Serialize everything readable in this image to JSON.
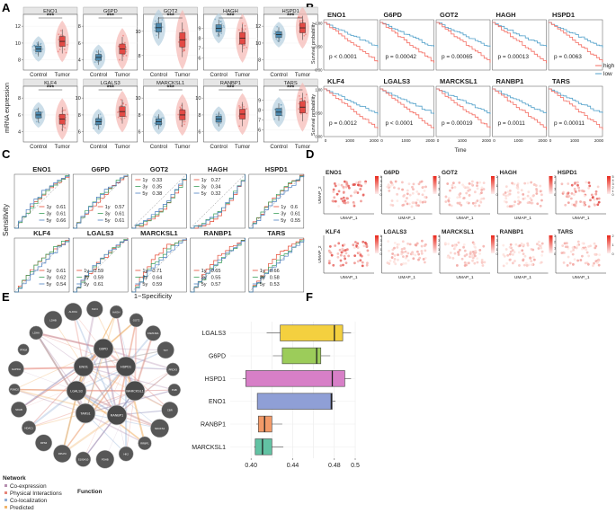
{
  "panels": [
    "A",
    "B",
    "C",
    "D",
    "E",
    "F"
  ],
  "genes_row1": [
    "ENO1",
    "G6PD",
    "GOT2",
    "HAGH",
    "HSPD1"
  ],
  "genes_row2": [
    "KLF4",
    "LGALS3",
    "MARCKSL1",
    "RANBP1",
    "TARS"
  ],
  "panelA": {
    "ylabel": "mRNA expression",
    "xticks": [
      "Control",
      "Tumor"
    ],
    "signif": "***",
    "colors": {
      "control": "#4f8bb0",
      "tumor": "#e34a45"
    },
    "plots": [
      {
        "gene": "ENO1",
        "yticks": [
          "8",
          "10",
          "12"
        ],
        "control_median": 9.3,
        "tumor_median": 10.2
      },
      {
        "gene": "G6PD",
        "yticks": [
          "4",
          "6",
          "8"
        ],
        "control_median": 4.3,
        "tumor_median": 5.3
      },
      {
        "gene": "GOT2",
        "yticks": [
          "8",
          "10"
        ],
        "control_median": 10.3,
        "tumor_median": 9.3
      },
      {
        "gene": "HAGH",
        "yticks": [
          "6",
          "7",
          "8",
          "9"
        ],
        "control_median": 9.0,
        "tumor_median": 8.0
      },
      {
        "gene": "HSPD1",
        "yticks": [
          "8",
          "10",
          "12"
        ],
        "control_median": 11.0,
        "tumor_median": 11.8
      },
      {
        "gene": "KLF4",
        "yticks": [
          "4",
          "6",
          "8"
        ],
        "control_median": 6.0,
        "tumor_median": 5.5
      },
      {
        "gene": "LGALS3",
        "yticks": [
          "6",
          "8",
          "10"
        ],
        "control_median": 7.2,
        "tumor_median": 8.4
      },
      {
        "gene": "MARCKSL1",
        "yticks": [
          "6",
          "8",
          "10"
        ],
        "control_median": 7.2,
        "tumor_median": 8.0
      },
      {
        "gene": "RANBP1",
        "yticks": [
          "6",
          "8",
          "10"
        ],
        "control_median": 7.5,
        "tumor_median": 8.1
      },
      {
        "gene": "TARS",
        "yticks": [
          "6",
          "7",
          "8",
          "9"
        ],
        "control_median": 7.8,
        "tumor_median": 8.3
      }
    ]
  },
  "panelB": {
    "ylabel": "Survival probability",
    "xlabel": "Time",
    "xticks": [
      "0",
      "1000",
      "2000"
    ],
    "yticks": [
      "0.00",
      "0.50",
      "1.00"
    ],
    "legend": [
      {
        "label": "high",
        "color": "#f46b60"
      },
      {
        "label": "low",
        "color": "#4f9fc9"
      }
    ],
    "pvalues": [
      "p < 0.0001",
      "p = 0.00042",
      "p = 0.00065",
      "p = 0.00013",
      "p = 0.0063",
      "p = 0.0012",
      "p < 0.0001",
      "p = 0.00019",
      "p = 0.0011",
      "p = 0.00011"
    ]
  },
  "panelC": {
    "ylabel": "Sensitivity",
    "xlabel": "1−Specificity",
    "colors": {
      "1y": "#e64b35",
      "3y": "#3a9f5a",
      "5y": "#4b7fc1"
    },
    "legend_labels": [
      "1y",
      "3y",
      "5y"
    ],
    "auc": [
      [
        "0.61",
        "0.61",
        "0.66"
      ],
      [
        "0.57",
        "0.61",
        "0.61"
      ],
      [
        "0.33",
        "0.35",
        "0.38"
      ],
      [
        "0.27",
        "0.34",
        "0.32"
      ],
      [
        "0.6",
        "0.61",
        "0.55"
      ],
      [
        "0.61",
        "0.62",
        "0.54"
      ],
      [
        "0.59",
        "0.59",
        "0.61"
      ],
      [
        "0.71",
        "0.64",
        "0.59"
      ],
      [
        "0.65",
        "0.55",
        "0.57"
      ],
      [
        "0.66",
        "0.58",
        "0.53"
      ]
    ]
  },
  "panelD": {
    "xlabel": "UMAP_1",
    "ylabel": "UMAP_2",
    "scales": [
      [
        "4",
        "3",
        "2",
        "1",
        "0"
      ],
      [
        "3",
        "2",
        "1",
        "0"
      ],
      [
        "2",
        "1",
        "0"
      ],
      [
        "3",
        "2",
        "1",
        "0"
      ],
      [
        "5",
        "4",
        "3",
        "2",
        "1",
        "0"
      ],
      [
        "4",
        "3",
        "2",
        "1",
        "0"
      ],
      [
        "4",
        "3",
        "2",
        "1",
        "0"
      ],
      [
        "4",
        "3",
        "2",
        "1",
        "0"
      ],
      [
        "3",
        "2",
        "1",
        "0"
      ],
      [
        "2",
        "1",
        "0"
      ]
    ]
  },
  "panelE": {
    "center_nodes": [
      "ENO1",
      "G6PD",
      "HSPD1",
      "LGALS3",
      "MARCKSL1",
      "TARS1",
      "RANBP1"
    ],
    "outer_nodes": [
      "GOT2",
      "FAM136A",
      "TKT",
      "PRDX3",
      "PHB",
      "CBR",
      "NDUFS1",
      "RRBP1",
      "HK2",
      "PDHB",
      "S100A10",
      "RPLP0",
      "RPS6",
      "HDAC1",
      "SDHB",
      "PSMD2",
      "GAPDH",
      "PFKM",
      "LDHA",
      "LDHB",
      "ALDOA",
      "KLF4",
      "HAGH"
    ],
    "legend_title": "Network",
    "function_label": "Function",
    "legend": [
      {
        "label": "Co-expression",
        "color": "#b58fb0"
      },
      {
        "label": "Physical Interactions",
        "color": "#e6857a"
      },
      {
        "label": "Co-localization",
        "color": "#8eaed6"
      },
      {
        "label": "Predicted",
        "color": "#f2b56b"
      }
    ]
  },
  "chart_data": {
    "type": "box",
    "title": "",
    "xlabel": "",
    "ylabel": "",
    "xlim": [
      0.38,
      0.5
    ],
    "xticks": [
      "0.40",
      "0.44",
      "0.48",
      "0.5"
    ],
    "categories": [
      "LGALS3",
      "G6PD",
      "HSPD1",
      "ENO1",
      "RANBP1",
      "MARCKSL1"
    ],
    "boxes": [
      {
        "name": "LGALS3",
        "color": "#f4d03f",
        "min": 0.415,
        "q1": 0.428,
        "median": 0.48,
        "q3": 0.488,
        "max": 0.496
      },
      {
        "name": "G6PD",
        "color": "#9ccc5a",
        "min": 0.421,
        "q1": 0.43,
        "median": 0.463,
        "q3": 0.467,
        "max": 0.476
      },
      {
        "name": "HSPD1",
        "color": "#d77fc7",
        "min": 0.392,
        "q1": 0.395,
        "median": 0.478,
        "q3": 0.49,
        "max": 0.496
      },
      {
        "name": "ENO1",
        "color": "#8f9fd6",
        "min": 0.406,
        "q1": 0.406,
        "median": 0.477,
        "q3": 0.478,
        "max": 0.481
      },
      {
        "name": "RANBP1",
        "color": "#f39a68",
        "min": 0.405,
        "q1": 0.407,
        "median": 0.413,
        "q3": 0.42,
        "max": 0.43
      },
      {
        "name": "MARCKSL1",
        "color": "#62c2a3",
        "min": 0.403,
        "q1": 0.404,
        "median": 0.411,
        "q3": 0.42,
        "max": 0.431
      }
    ]
  }
}
